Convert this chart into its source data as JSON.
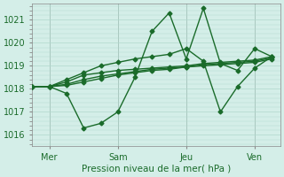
{
  "title": "",
  "xlabel": "Pression niveau de la mer( hPa )",
  "ylabel": "",
  "bg_color": "#d4eee8",
  "grid_color": "#b0d8cc",
  "line_color": "#1a6b2a",
  "marker_color": "#1a6b2a",
  "yticks": [
    1016,
    1017,
    1018,
    1019,
    1020,
    1021
  ],
  "ylim": [
    1015.5,
    1021.7
  ],
  "xtick_labels": [
    "Mer",
    "Sam",
    "Jeu",
    "Ven"
  ],
  "xtick_positions": [
    1,
    5,
    9,
    13
  ],
  "xlim": [
    0,
    14.5
  ],
  "series1_x": [
    0,
    1,
    2,
    3,
    4,
    5,
    6,
    7,
    8,
    9,
    10,
    11,
    12,
    13,
    14
  ],
  "series1_y": [
    1018.1,
    1018.1,
    1017.8,
    1016.3,
    1016.5,
    1017.0,
    1018.5,
    1020.5,
    1021.3,
    1019.3,
    1021.5,
    1019.1,
    1018.8,
    1019.75,
    1019.4
  ],
  "series2_x": [
    0,
    1,
    2,
    3,
    4,
    5,
    6,
    7,
    8,
    9,
    10,
    11,
    12,
    13,
    14
  ],
  "series2_y": [
    1018.1,
    1018.1,
    1018.3,
    1018.6,
    1018.7,
    1018.8,
    1018.85,
    1018.9,
    1018.95,
    1019.0,
    1019.1,
    1019.15,
    1019.2,
    1019.25,
    1019.4
  ],
  "series3_x": [
    0,
    1,
    2,
    3,
    4,
    5,
    6,
    7,
    8,
    9,
    10,
    11,
    12,
    13,
    14
  ],
  "series3_y": [
    1018.1,
    1018.1,
    1018.2,
    1018.4,
    1018.55,
    1018.65,
    1018.75,
    1018.85,
    1018.9,
    1018.95,
    1019.05,
    1019.1,
    1019.15,
    1019.2,
    1019.35
  ],
  "series4_x": [
    0,
    1,
    2,
    3,
    4,
    5,
    6,
    7,
    8,
    9,
    10,
    11,
    12,
    13,
    14
  ],
  "series4_y": [
    1018.1,
    1018.1,
    1018.15,
    1018.3,
    1018.45,
    1018.6,
    1018.7,
    1018.8,
    1018.85,
    1018.95,
    1019.0,
    1019.05,
    1019.1,
    1019.15,
    1019.3
  ],
  "series5_x": [
    0,
    1,
    2,
    3,
    4,
    5,
    6,
    7,
    8,
    9,
    10,
    11,
    12,
    13,
    14
  ],
  "series5_y": [
    1018.1,
    1018.1,
    1018.4,
    1018.7,
    1019.0,
    1019.15,
    1019.3,
    1019.4,
    1019.5,
    1019.75,
    1019.2,
    1017.0,
    1018.1,
    1018.9,
    1019.4
  ],
  "vlines_x": [
    1,
    5,
    9,
    13
  ],
  "vline_color": "#888888"
}
